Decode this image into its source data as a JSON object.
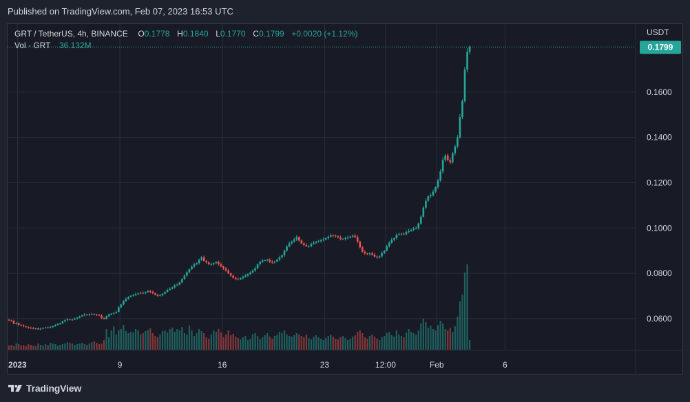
{
  "header": {
    "published": "Published on TradingView.com, Feb 07, 2023 16:53 UTC"
  },
  "legend": {
    "symbol": "GRT / TetherUS, 4h, BINANCE",
    "o_label": "O",
    "o_value": "0.1778",
    "h_label": "H",
    "h_value": "0.1840",
    "l_label": "L",
    "l_value": "0.1770",
    "c_label": "C",
    "c_value": "0.1799",
    "change": "+0.0020 (+1.12%)",
    "vol_label": "Vol · GRT",
    "vol_value": "36.132M"
  },
  "footer": {
    "brand": "TradingView"
  },
  "colors": {
    "up": "#26a69a",
    "down": "#ef5350",
    "grid": "#2a2e39",
    "bg": "#181b25"
  },
  "chart_data": {
    "type": "candlestick",
    "symbol": "GRT/USDT",
    "interval": "4h",
    "currency_label": "USDT",
    "last_price": "0.1799",
    "y_range": [
      0.046,
      0.19
    ],
    "y_ticks": [
      "0.0600",
      "0.0800",
      "0.1000",
      "0.1200",
      "0.1400",
      "0.1600"
    ],
    "x_labels": [
      "2023",
      "9",
      "16",
      "23",
      "12:00",
      "Feb",
      "6"
    ],
    "x_label_positions": [
      3.5,
      45.5,
      87.5,
      129.5,
      154.5,
      175.5,
      203.5
    ],
    "close_series": [
      0.0592,
      0.059,
      0.0578,
      0.0581,
      0.0572,
      0.057,
      0.0566,
      0.0563,
      0.056,
      0.0558,
      0.0555,
      0.0557,
      0.0553,
      0.0556,
      0.0559,
      0.0561,
      0.056,
      0.0563,
      0.0567,
      0.0572,
      0.0576,
      0.058,
      0.0588,
      0.0593,
      0.0597,
      0.0594,
      0.0596,
      0.06,
      0.0605,
      0.061,
      0.0614,
      0.0618,
      0.0616,
      0.0619,
      0.0621,
      0.0618,
      0.0616,
      0.0614,
      0.0603,
      0.0599,
      0.061,
      0.0618,
      0.0622,
      0.0625,
      0.063,
      0.065,
      0.0662,
      0.0678,
      0.0688,
      0.0696,
      0.0701,
      0.0704,
      0.0709,
      0.0711,
      0.0714,
      0.0712,
      0.0717,
      0.0722,
      0.0718,
      0.0712,
      0.0705,
      0.07,
      0.0703,
      0.071,
      0.0718,
      0.0727,
      0.0732,
      0.0738,
      0.0747,
      0.075,
      0.076,
      0.0775,
      0.079,
      0.0805,
      0.0818,
      0.083,
      0.084,
      0.0845,
      0.086,
      0.087,
      0.0855,
      0.0848,
      0.084,
      0.084,
      0.0845,
      0.085,
      0.084,
      0.083,
      0.0822,
      0.0812,
      0.08,
      0.079,
      0.078,
      0.0775,
      0.0773,
      0.0778,
      0.0785,
      0.079,
      0.0797,
      0.0804,
      0.0812,
      0.0822,
      0.084,
      0.085,
      0.0857,
      0.0858,
      0.086,
      0.085,
      0.0848,
      0.0852,
      0.086,
      0.087,
      0.088,
      0.09,
      0.0918,
      0.0932,
      0.094,
      0.095,
      0.096,
      0.0945,
      0.0932,
      0.0925,
      0.092,
      0.092,
      0.093,
      0.0935,
      0.094,
      0.0942,
      0.0946,
      0.0949,
      0.0955,
      0.0962,
      0.0968,
      0.0966,
      0.0963,
      0.0958,
      0.0952,
      0.0952,
      0.0955,
      0.0958,
      0.0962,
      0.0966,
      0.096,
      0.094,
      0.0915,
      0.0895,
      0.0888,
      0.0885,
      0.0888,
      0.0882,
      0.0874,
      0.087,
      0.0875,
      0.089,
      0.09,
      0.092,
      0.0935,
      0.0948,
      0.0955,
      0.097,
      0.0972,
      0.0975,
      0.0973,
      0.0982,
      0.0987,
      0.0992,
      0.0998,
      0.1,
      0.102,
      0.105,
      0.109,
      0.112,
      0.114,
      0.1145,
      0.116,
      0.118,
      0.121,
      0.125,
      0.13,
      0.132,
      0.13,
      0.129,
      0.133,
      0.136,
      0.14,
      0.149,
      0.156,
      0.17,
      0.1778,
      0.1799
    ],
    "volume_series": [
      6,
      7,
      5,
      9,
      8,
      6,
      7,
      5,
      8,
      7,
      6,
      5,
      9,
      7,
      6,
      8,
      7,
      10,
      9,
      8,
      6,
      7,
      8,
      9,
      11,
      10,
      9,
      7,
      8,
      9,
      10,
      8,
      7,
      9,
      11,
      12,
      10,
      8,
      9,
      14,
      30,
      18,
      28,
      34,
      22,
      28,
      30,
      36,
      27,
      24,
      26,
      25,
      30,
      28,
      22,
      24,
      27,
      29,
      31,
      24,
      20,
      18,
      22,
      27,
      28,
      25,
      30,
      32,
      26,
      30,
      28,
      33,
      24,
      22,
      35,
      28,
      20,
      24,
      30,
      27,
      24,
      18,
      16,
      22,
      28,
      26,
      30,
      25,
      18,
      22,
      28,
      21,
      23,
      19,
      17,
      15,
      18,
      20,
      14,
      16,
      22,
      24,
      20,
      15,
      18,
      21,
      24,
      19,
      16,
      20,
      22,
      26,
      24,
      28,
      22,
      20,
      19,
      21,
      24,
      22,
      20,
      18,
      22,
      17,
      15,
      19,
      21,
      18,
      16,
      14,
      17,
      20,
      22,
      19,
      16,
      15,
      18,
      20,
      17,
      14,
      16,
      19,
      21,
      26,
      28,
      24,
      18,
      16,
      20,
      22,
      19,
      16,
      14,
      18,
      20,
      24,
      26,
      21,
      19,
      28,
      22,
      20,
      18,
      25,
      30,
      26,
      24,
      22,
      28,
      38,
      45,
      40,
      32,
      35,
      30,
      28,
      36,
      42,
      38,
      30,
      28,
      32,
      26,
      34,
      48,
      70,
      80,
      112,
      124,
      14
    ]
  }
}
